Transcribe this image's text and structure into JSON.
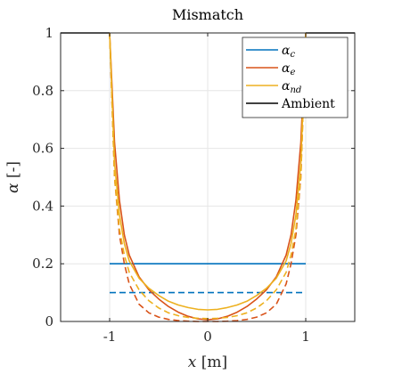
{
  "chart_data": {
    "type": "line",
    "title": "Mismatch",
    "xlabel": "x [m]",
    "xlabel_var": "x",
    "xlabel_unit": "[m]",
    "ylabel": "α [-]",
    "ylabel_var": "α",
    "ylabel_unit": "[-]",
    "xlim": [
      -1.5,
      1.5
    ],
    "ylim": [
      0,
      1
    ],
    "xticks": [
      -1,
      0,
      1
    ],
    "xtick_labels": [
      "-1",
      "0",
      "1"
    ],
    "yticks": [
      0,
      0.2,
      0.4,
      0.6,
      0.8,
      1
    ],
    "ytick_labels": [
      "0",
      "0.2",
      "0.4",
      "0.6",
      "0.8",
      "1"
    ],
    "grid": true,
    "legend_position": "top-right",
    "legend": [
      {
        "base": "α",
        "sub": "c",
        "color": "#0072BD"
      },
      {
        "base": "α",
        "sub": "e",
        "color": "#D95319"
      },
      {
        "base": "α",
        "sub": "nd",
        "color": "#EDB120"
      },
      {
        "base": "Ambient",
        "sub": "",
        "color": "#000000"
      }
    ],
    "series": [
      {
        "style": "solid",
        "color": "#000000",
        "x": [
          -1.5,
          -1.0
        ],
        "y": [
          1,
          1
        ]
      },
      {
        "style": "solid",
        "color": "#000000",
        "x": [
          1.0,
          1.5
        ],
        "y": [
          1,
          1
        ]
      },
      {
        "style": "solid",
        "color": "#0072BD",
        "x": [
          -1.0,
          1.0
        ],
        "y": [
          0.2,
          0.2
        ]
      },
      {
        "style": "dashed",
        "color": "#0072BD",
        "x": [
          -1.0,
          1.0
        ],
        "y": [
          0.1,
          0.1
        ]
      },
      {
        "style": "solid",
        "color": "#D95319",
        "x": [
          -1.0,
          -0.95,
          -0.9,
          -0.85,
          -0.8,
          -0.7,
          -0.6,
          -0.5,
          -0.4,
          -0.3,
          -0.2,
          -0.1,
          0.0,
          0.1,
          0.2,
          0.3,
          0.4,
          0.5,
          0.6,
          0.7,
          0.8,
          0.85,
          0.9,
          0.95,
          1.0
        ],
        "y": [
          1.0,
          0.62,
          0.42,
          0.3,
          0.23,
          0.155,
          0.11,
          0.078,
          0.052,
          0.032,
          0.018,
          0.009,
          0.006,
          0.009,
          0.018,
          0.032,
          0.052,
          0.078,
          0.11,
          0.155,
          0.23,
          0.3,
          0.42,
          0.62,
          1.0
        ]
      },
      {
        "style": "dashed",
        "color": "#D95319",
        "x": [
          -1.0,
          -0.95,
          -0.9,
          -0.85,
          -0.8,
          -0.7,
          -0.6,
          -0.5,
          -0.4,
          -0.3,
          -0.2,
          -0.1,
          0.0,
          0.1,
          0.2,
          0.3,
          0.4,
          0.5,
          0.6,
          0.7,
          0.8,
          0.85,
          0.9,
          0.95,
          1.0
        ],
        "y": [
          1.0,
          0.5,
          0.3,
          0.2,
          0.13,
          0.06,
          0.03,
          0.015,
          0.007,
          0.003,
          0.001,
          0.0,
          0.0,
          0.0,
          0.001,
          0.003,
          0.007,
          0.015,
          0.03,
          0.06,
          0.13,
          0.2,
          0.3,
          0.5,
          1.0
        ]
      },
      {
        "style": "solid",
        "color": "#EDB120",
        "x": [
          -1.0,
          -0.95,
          -0.9,
          -0.85,
          -0.8,
          -0.7,
          -0.6,
          -0.5,
          -0.4,
          -0.3,
          -0.2,
          -0.1,
          0.0,
          0.1,
          0.2,
          0.3,
          0.4,
          0.5,
          0.6,
          0.7,
          0.8,
          0.85,
          0.9,
          0.95,
          1.0
        ],
        "y": [
          1.0,
          0.55,
          0.37,
          0.27,
          0.21,
          0.15,
          0.115,
          0.09,
          0.07,
          0.057,
          0.048,
          0.042,
          0.04,
          0.042,
          0.048,
          0.057,
          0.07,
          0.09,
          0.115,
          0.15,
          0.21,
          0.27,
          0.37,
          0.55,
          1.0
        ]
      },
      {
        "style": "dashed",
        "color": "#EDB120",
        "x": [
          -1.0,
          -0.95,
          -0.9,
          -0.85,
          -0.8,
          -0.7,
          -0.6,
          -0.5,
          -0.4,
          -0.3,
          -0.2,
          -0.1,
          0.0,
          0.1,
          0.2,
          0.3,
          0.4,
          0.5,
          0.6,
          0.7,
          0.8,
          0.85,
          0.9,
          0.95,
          1.0
        ],
        "y": [
          1.0,
          0.5,
          0.32,
          0.23,
          0.17,
          0.11,
          0.072,
          0.047,
          0.03,
          0.02,
          0.014,
          0.011,
          0.01,
          0.011,
          0.014,
          0.02,
          0.03,
          0.047,
          0.072,
          0.11,
          0.17,
          0.23,
          0.32,
          0.5,
          1.0
        ]
      }
    ]
  }
}
